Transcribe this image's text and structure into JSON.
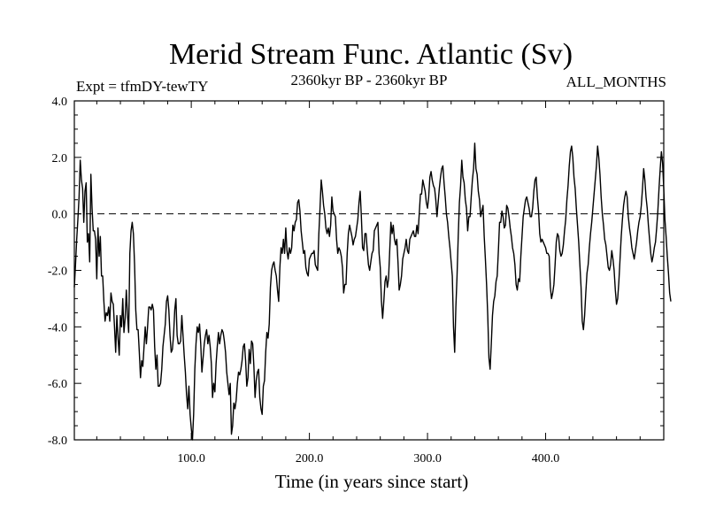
{
  "chart_data": {
    "type": "line",
    "title": "Merid Stream Func. Atlantic (Sv)",
    "left_label": "Expt = tfmDY-tewTY",
    "center_label": "2360kyr BP - 2360kyr BP",
    "right_label": "ALL_MONTHS",
    "xlabel": "Time (in years since start)",
    "ylabel": "",
    "xlim": [
      1,
      500
    ],
    "ylim": [
      -8.0,
      4.0
    ],
    "x_ticks": [
      100,
      200,
      300,
      400
    ],
    "x_tick_labels": [
      "100.0",
      "200.0",
      "300.0",
      "400.0"
    ],
    "y_ticks": [
      -8,
      -6,
      -4,
      -2,
      0,
      2,
      4
    ],
    "y_tick_labels": [
      "-8.0",
      "-6.0",
      "-4.0",
      "-2.0",
      "0.0",
      "2.0",
      "4.0"
    ],
    "reference_line": 0.0,
    "colors": {
      "line": "#000000",
      "axis": "#000000",
      "background": "#ffffff"
    },
    "series": [
      {
        "name": "Merid Stream Func. Atlantic",
        "x_start": 1,
        "x_step": 1,
        "values": [
          -2.6,
          -1.8,
          -0.9,
          -0.2,
          0.6,
          1.9,
          1.2,
          0.9,
          -0.3,
          0.8,
          1.1,
          -1.0,
          -0.7,
          -1.7,
          1.4,
          0.2,
          -0.6,
          -0.6,
          -0.9,
          -2.3,
          -0.5,
          -1.5,
          -0.8,
          -2.2,
          -2.2,
          -3.1,
          -3.8,
          -3.5,
          -3.6,
          -3.3,
          -3.8,
          -2.8,
          -3.1,
          -3.2,
          -4.0,
          -4.9,
          -3.6,
          -4.4,
          -5.0,
          -3.6,
          -4.0,
          -3.0,
          -4.2,
          -3.7,
          -2.7,
          -3.6,
          -4.2,
          -1.4,
          -0.6,
          -0.3,
          -0.7,
          -1.8,
          -3.4,
          -4.1,
          -4.1,
          -4.9,
          -5.8,
          -5.2,
          -5.4,
          -4.7,
          -4.0,
          -4.6,
          -4.0,
          -3.3,
          -3.3,
          -3.4,
          -3.2,
          -3.4,
          -4.7,
          -5.5,
          -5.0,
          -6.1,
          -6.1,
          -6.0,
          -5.5,
          -4.7,
          -4.3,
          -3.9,
          -3.1,
          -2.9,
          -3.4,
          -4.3,
          -4.9,
          -4.8,
          -4.3,
          -3.4,
          -3.0,
          -4.3,
          -4.6,
          -4.6,
          -4.5,
          -3.6,
          -4.3,
          -5.0,
          -5.6,
          -6.4,
          -6.9,
          -6.1,
          -7.1,
          -7.6,
          -8.0,
          -7.1,
          -5.5,
          -4.6,
          -4.0,
          -4.2,
          -3.9,
          -4.6,
          -5.6,
          -5.1,
          -4.6,
          -4.3,
          -4.1,
          -4.6,
          -4.3,
          -4.7,
          -5.3,
          -6.5,
          -6.0,
          -6.3,
          -5.3,
          -4.7,
          -4.2,
          -4.6,
          -4.3,
          -4.1,
          -4.2,
          -4.5,
          -4.9,
          -5.6,
          -6.0,
          -6.4,
          -6.0,
          -7.8,
          -7.5,
          -6.7,
          -6.9,
          -6.6,
          -6.0,
          -5.6,
          -5.7,
          -5.5,
          -5.2,
          -4.7,
          -4.6,
          -5.2,
          -6.1,
          -5.8,
          -4.8,
          -5.3,
          -4.5,
          -4.6,
          -5.4,
          -6.5,
          -5.9,
          -5.6,
          -5.5,
          -6.5,
          -6.9,
          -7.1,
          -6.1,
          -5.9,
          -4.9,
          -4.2,
          -4.4,
          -3.9,
          -2.6,
          -2.0,
          -1.8,
          -1.7,
          -2.0,
          -2.2,
          -2.7,
          -3.1,
          -1.9,
          -1.2,
          -1.4,
          -0.9,
          -1.4,
          -0.5,
          -1.3,
          -1.6,
          -1.2,
          -1.4,
          -1.2,
          -0.4,
          -0.6,
          -0.3,
          -0.2,
          0.4,
          0.5,
          0.1,
          -0.6,
          -1.0,
          -1.4,
          -1.3,
          -1.9,
          -2.1,
          -2.2,
          -1.6,
          -1.5,
          -1.4,
          -1.4,
          -1.3,
          -1.8,
          -1.9,
          -2.0,
          -0.7,
          0.2,
          1.2,
          0.8,
          0.3,
          0.0,
          -0.5,
          -0.7,
          -0.5,
          -0.8,
          -0.4,
          0.6,
          0.1,
          0.0,
          -0.1,
          -0.9,
          -1.4,
          -1.2,
          -1.3,
          -1.5,
          -1.9,
          -2.8,
          -2.5,
          -2.5,
          -1.4,
          -0.7,
          -0.4,
          -0.6,
          -0.8,
          -1.1,
          -0.9,
          -0.8,
          -0.5,
          -0.2,
          0.4,
          0.8,
          -0.1,
          -1.2,
          -1.3,
          -0.7,
          -0.7,
          -1.3,
          -1.8,
          -2.0,
          -1.7,
          -1.4,
          -1.3,
          -0.6,
          -0.5,
          -0.4,
          -0.3,
          -1.4,
          -1.9,
          -3.1,
          -3.7,
          -3.1,
          -2.4,
          -2.2,
          -2.6,
          -2.3,
          -1.3,
          -0.3,
          -0.7,
          -0.4,
          -0.9,
          -1.1,
          -0.9,
          -1.7,
          -2.7,
          -2.5,
          -2.2,
          -1.6,
          -1.4,
          -1.2,
          -0.9,
          -1.3,
          -1.4,
          -0.9,
          -0.8,
          -0.7,
          -0.6,
          -0.8,
          -0.8,
          -0.4,
          -0.7,
          0.0,
          0.7,
          0.7,
          1.2,
          1.0,
          0.8,
          0.4,
          0.2,
          0.6,
          1.3,
          1.5,
          1.2,
          1.0,
          0.9,
          0.5,
          -0.1,
          0.4,
          0.9,
          1.3,
          1.6,
          1.7,
          1.1,
          0.6,
          0.0,
          -0.3,
          -0.8,
          -1.2,
          -1.7,
          -2.2,
          -4.0,
          -4.9,
          -3.3,
          -2.2,
          -0.8,
          0.4,
          1.0,
          1.9,
          1.3,
          1.1,
          0.5,
          0.2,
          -0.6,
          -0.1,
          -0.1,
          0.6,
          1.2,
          1.6,
          2.5,
          1.6,
          1.4,
          0.8,
          0.5,
          -0.1,
          0.1,
          0.3,
          -0.8,
          -1.6,
          -2.5,
          -3.6,
          -5.1,
          -5.5,
          -4.6,
          -3.6,
          -3.1,
          -2.9,
          -2.4,
          -2.2,
          -1.3,
          -0.3,
          -0.3,
          0.1,
          -0.1,
          -0.5,
          -0.4,
          0.3,
          0.2,
          -0.1,
          -0.5,
          -0.8,
          -1.2,
          -1.4,
          -1.8,
          -2.5,
          -2.7,
          -2.3,
          -2.4,
          -1.5,
          -0.8,
          -0.1,
          0.2,
          0.5,
          0.6,
          0.4,
          0.2,
          -0.1,
          -0.1,
          0.2,
          0.8,
          1.2,
          1.3,
          0.6,
          0.1,
          -0.7,
          -1.0,
          -0.9,
          -1.0,
          -1.1,
          -1.2,
          -1.4,
          -1.4,
          -1.5,
          -2.6,
          -3.0,
          -2.8,
          -2.5,
          -1.8,
          -1.0,
          -0.7,
          -0.8,
          -1.3,
          -1.5,
          -1.4,
          -1.1,
          -0.6,
          -0.2,
          0.5,
          1.0,
          1.7,
          2.2,
          2.4,
          2.0,
          1.3,
          0.9,
          0.2,
          -0.4,
          -1.0,
          -1.8,
          -2.6,
          -3.8,
          -4.1,
          -3.6,
          -2.8,
          -2.1,
          -1.8,
          -1.2,
          -0.7,
          -0.3,
          0.2,
          0.7,
          1.2,
          1.7,
          2.4,
          2.0,
          1.4,
          0.6,
          0.0,
          -0.4,
          -0.9,
          -1.1,
          -1.5,
          -1.9,
          -2.0,
          -1.8,
          -1.3,
          -1.6,
          -2.0,
          -2.7,
          -3.2,
          -3.0,
          -2.4,
          -1.6,
          -0.8,
          -0.2,
          0.3,
          0.6,
          0.8,
          0.6,
          -0.1,
          -0.5,
          -0.8,
          -1.2,
          -1.4,
          -1.6,
          -1.3,
          -1.0,
          -0.6,
          -0.3,
          -0.1,
          0.3,
          0.9,
          1.6,
          1.2,
          0.6,
          0.2,
          -0.4,
          -0.9,
          -1.4,
          -1.7,
          -1.5,
          -1.2,
          -1.0,
          -0.5,
          0.1,
          0.9,
          1.6,
          2.2,
          1.8,
          0.9,
          -0.2,
          -0.8,
          -1.5,
          -2.1,
          -2.8,
          -3.1
        ]
      }
    ]
  }
}
